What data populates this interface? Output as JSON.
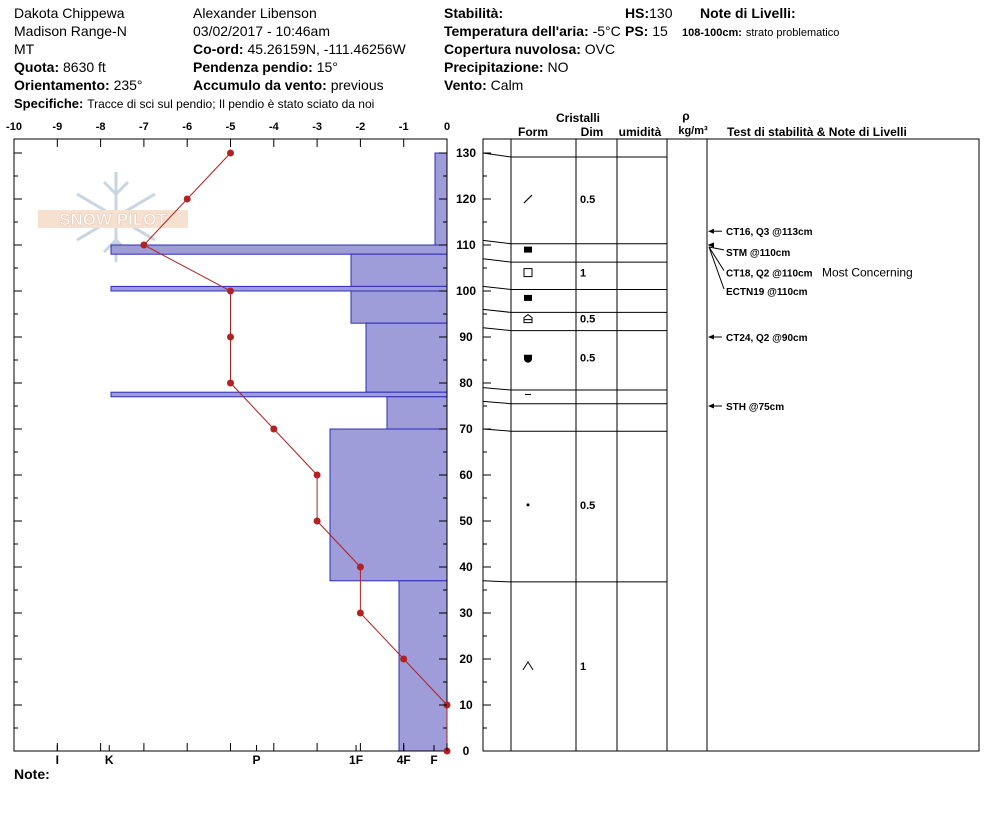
{
  "header": {
    "location": "Dakota Chippewa",
    "range": "Madison Range-N",
    "state": "MT",
    "elevation_label": "Quota:",
    "elevation": "8630 ft",
    "aspect_label": "Orientamento:",
    "aspect": "235°",
    "specifics_label": "Specifiche:",
    "specifics": "Tracce di sci sul pendio;  Il pendio è stato sciato da noi",
    "observer": "Alexander Libenson",
    "datetime": "03/02/2017 - 10:46am",
    "coord_label": "Co-ord:",
    "coord": "45.26159N, -111.46256W",
    "slope_label": "Pendenza pendio:",
    "slope": "15°",
    "wind_loading_label": "Accumulo da vento:",
    "wind_loading": "previous",
    "stability_label": "Stabilità:",
    "stability": "",
    "air_temp_label": "Temperatura dell'aria:",
    "air_temp": "-5°C",
    "sky_label": "Copertura nuvolosa:",
    "sky": "OVC",
    "precip_label": "Precipitazione:",
    "precip": "NO",
    "wind_label": "Vento:",
    "wind": "Calm",
    "hs_label": "HS:",
    "hs": "130",
    "ps_label": "PS:",
    "ps": "15",
    "layer_notes_label": "Note di Livelli:",
    "layer_note": "108-100cm:",
    "layer_note_text": "strato problematico",
    "notes_label": "Note:",
    "watermark": "SNOW PILOT"
  },
  "table_headers": {
    "crystals": "Cristalli",
    "form": "Form",
    "size": "Dim",
    "moisture": "umidità",
    "rho": "ρ",
    "density_unit": "kg/m³",
    "tests": "Test di stabilità & Note di Livelli"
  },
  "chart_data": {
    "type": "snow-profile",
    "temp_axis": {
      "min": -10,
      "max": 0,
      "ticks": [
        "-10",
        "-9",
        "-8",
        "-7",
        "-6",
        "-5",
        "-4",
        "-3",
        "-2",
        "-1",
        "0"
      ]
    },
    "depth_axis": {
      "min": 0,
      "max": 135,
      "ticks": [
        0,
        10,
        20,
        30,
        40,
        50,
        60,
        70,
        80,
        90,
        100,
        110,
        120,
        130
      ]
    },
    "hardness_labels": [
      {
        "label": "I",
        "temp": -9.0
      },
      {
        "label": "K",
        "temp": -7.8
      },
      {
        "label": "P",
        "temp": -4.4
      },
      {
        "label": "1F",
        "temp": -2.1
      },
      {
        "label": "4F",
        "temp": -1.0
      },
      {
        "label": "F",
        "temp": -0.3
      }
    ],
    "temperature_profile": [
      {
        "depth": 130,
        "temp": -5
      },
      {
        "depth": 120,
        "temp": -6
      },
      {
        "depth": 110,
        "temp": -7
      },
      {
        "depth": 100,
        "temp": -5
      },
      {
        "depth": 90,
        "temp": -5
      },
      {
        "depth": 80,
        "temp": -5
      },
      {
        "depth": 70,
        "temp": -4
      },
      {
        "depth": 60,
        "temp": -3
      },
      {
        "depth": 50,
        "temp": -3
      },
      {
        "depth": 40,
        "temp": -2
      },
      {
        "depth": 30,
        "temp": -2
      },
      {
        "depth": 20,
        "temp": -1
      },
      {
        "depth": 10,
        "temp": 0
      },
      {
        "depth": 0,
        "temp": 0
      }
    ],
    "hardness_layers": [
      {
        "top": 130,
        "bottom": 110,
        "hardness": "F"
      },
      {
        "top": 110,
        "bottom": 108,
        "hardness": "K"
      },
      {
        "top": 108,
        "bottom": 101,
        "hardness": "1F"
      },
      {
        "top": 101,
        "bottom": 100,
        "hardness": "K"
      },
      {
        "top": 100,
        "bottom": 93,
        "hardness": "1F"
      },
      {
        "top": 93,
        "bottom": 78,
        "hardness": "1F+"
      },
      {
        "top": 78,
        "bottom": 77,
        "hardness": "K"
      },
      {
        "top": 77,
        "bottom": 70,
        "hardness": "4F+"
      },
      {
        "top": 70,
        "bottom": 37,
        "hardness": "1F-"
      },
      {
        "top": 37,
        "bottom": 0,
        "hardness": "4F"
      }
    ],
    "layer_boundaries_cm": [
      130,
      111,
      107,
      101,
      96,
      92,
      79,
      76,
      70,
      37,
      0
    ],
    "crystal_layers": [
      {
        "depth": 120,
        "form": "decomposing",
        "size": "0.5"
      },
      {
        "depth": 109,
        "form": "surface-hoar",
        "size": ""
      },
      {
        "depth": 104,
        "form": "faceted",
        "size": "1"
      },
      {
        "depth": 98.5,
        "form": "surface-hoar",
        "size": ""
      },
      {
        "depth": 94,
        "form": "depth-hoar",
        "size": "0.5"
      },
      {
        "depth": 85.5,
        "form": "rounding-facets",
        "size": "0.5"
      },
      {
        "depth": 77.5,
        "form": "crust",
        "size": ""
      },
      {
        "depth": 53.5,
        "form": "rounded",
        "size": "0.5"
      },
      {
        "depth": 18.5,
        "form": "depth-hoar",
        "size": "1"
      }
    ],
    "tests": [
      {
        "depth": 113,
        "label_depth": 113,
        "text": "CT16, Q3 @113cm",
        "note": ""
      },
      {
        "depth": 110,
        "label_depth": 108.5,
        "text": "STM @110cm",
        "note": ""
      },
      {
        "depth": 110,
        "label_depth": 104,
        "text": "CT18, Q2 @110cm",
        "note": "Most Concerning"
      },
      {
        "depth": 110,
        "label_depth": 100,
        "text": "ECTN19 @110cm",
        "note": ""
      },
      {
        "depth": 90,
        "label_depth": 90,
        "text": "CT24, Q2 @90cm",
        "note": ""
      },
      {
        "depth": 75,
        "label_depth": 75,
        "text": "STH @75cm",
        "note": ""
      }
    ]
  }
}
